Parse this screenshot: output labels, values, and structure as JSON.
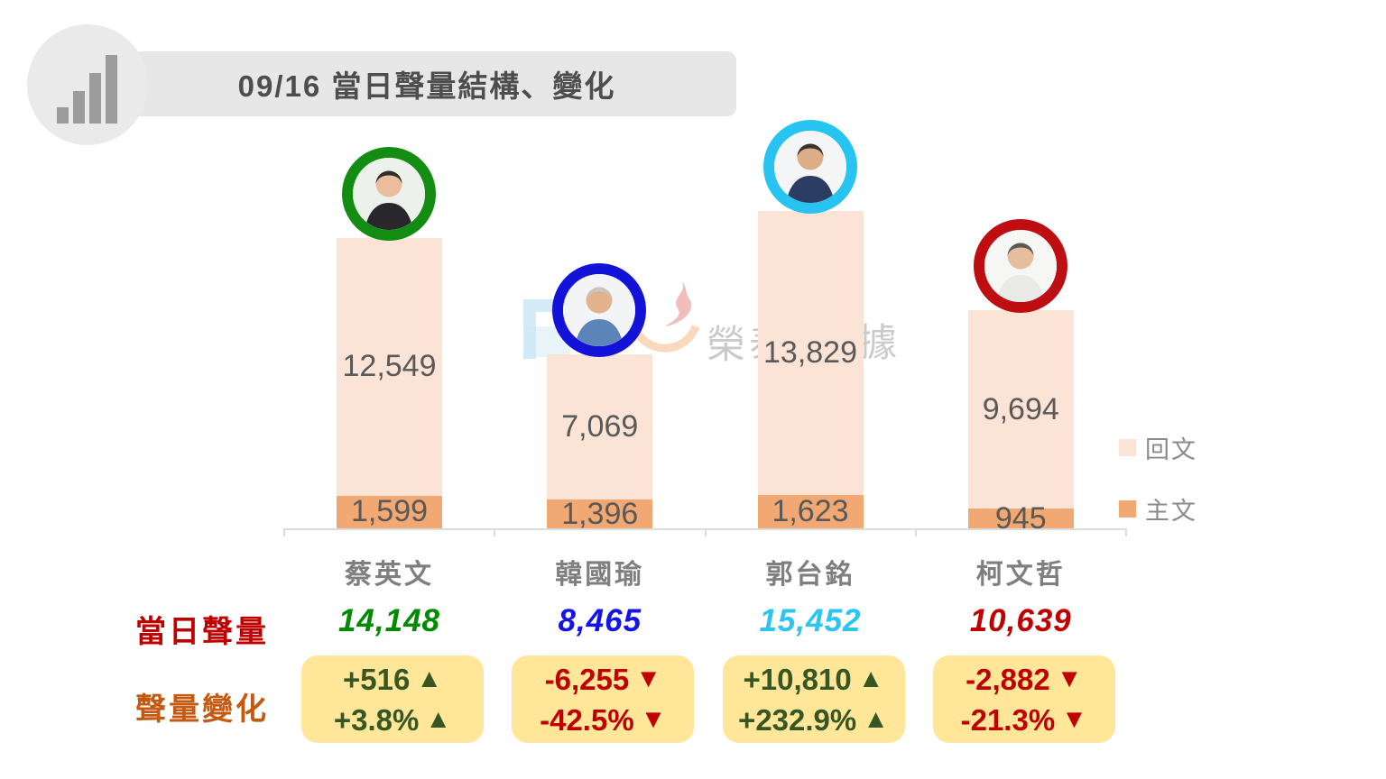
{
  "title": "09/16 當日聲量結構、變化",
  "watermark": {
    "text_left": "榮泰",
    "text_right": "據"
  },
  "legend": {
    "reply_label": "回文",
    "main_label": "主文",
    "reply_color": "#FBE4D5",
    "main_color": "#F2A873"
  },
  "row_labels": {
    "daily_volume": "當日聲量",
    "volume_change": "聲量變化"
  },
  "colors": {
    "daily_volume_label": "#C00000",
    "volume_change_label": "#C45911",
    "change_box_bg": "#FFE699",
    "positive_change": "#375623",
    "negative_change": "#C00000",
    "bar_value_text": "#595959",
    "candidate_name_text": "#7F7F7F",
    "axis": "#DCDCDC",
    "title_text": "#4D4D4D",
    "banner_bg": "#E7E7E7"
  },
  "chart_data": {
    "type": "bar",
    "stacked": true,
    "title": "09/16 當日聲量結構、變化",
    "categories": [
      "蔡英文",
      "韓國瑜",
      "郭台銘",
      "柯文哲"
    ],
    "series": [
      {
        "name": "回文",
        "values": [
          12549,
          7069,
          13829,
          9694
        ],
        "color": "#FBE4D5"
      },
      {
        "name": "主文",
        "values": [
          1599,
          1396,
          1623,
          945
        ],
        "color": "#F2A873"
      }
    ],
    "totals": [
      14148,
      8465,
      15452,
      10639
    ],
    "xlabel": "",
    "ylabel": "",
    "ylim": [
      0,
      16000
    ],
    "grid": false,
    "legend_position": "right",
    "annotations": {
      "daily_volume": [
        "14,148",
        "8,465",
        "15,452",
        "10,639"
      ],
      "volume_change_abs": [
        "+516",
        "-6,255",
        "+10,810",
        "-2,882"
      ],
      "volume_change_pct": [
        "+3.8%",
        "-42.5%",
        "+232.9%",
        "-21.3%"
      ]
    }
  },
  "candidates": [
    {
      "name": "蔡英文",
      "reply": "12,549",
      "main": "1,599",
      "total": "14,148",
      "reply_value": 12549,
      "main_value": 1599,
      "total_color": "#008A00",
      "ring_color": "#128D12",
      "change_abs": "+516",
      "change_pct": "+3.8%",
      "arrow": "▲",
      "trend": "up",
      "change_color": "#375623",
      "avatar": {
        "bg": "#EDF1EC",
        "hair": "#332E2B",
        "skin": "#ECBD9C",
        "shirt": "#2A272C"
      }
    },
    {
      "name": "韓國瑜",
      "reply": "7,069",
      "main": "1,396",
      "total": "8,465",
      "reply_value": 7069,
      "main_value": 1396,
      "total_color": "#1414E8",
      "ring_color": "#1212D9",
      "change_abs": "-6,255",
      "change_pct": "-42.5%",
      "arrow": "▼",
      "trend": "down",
      "change_color": "#C00000",
      "avatar": {
        "bg": "#F2F4F6",
        "hair": "#C9C5BD",
        "skin": "#E3B28C",
        "shirt": "#5D84B8"
      }
    },
    {
      "name": "郭台銘",
      "reply": "13,829",
      "main": "1,623",
      "total": "15,452",
      "reply_value": 13829,
      "main_value": 1623,
      "total_color": "#2CC4F0",
      "ring_color": "#27C4F2",
      "change_abs": "+10,810",
      "change_pct": "+232.9%",
      "arrow": "▲",
      "trend": "up",
      "change_color": "#375623",
      "avatar": {
        "bg": "#F3F5F7",
        "hair": "#3A332E",
        "skin": "#DCAE85",
        "shirt": "#2C3D63"
      }
    },
    {
      "name": "柯文哲",
      "reply": "9,694",
      "main": "945",
      "total": "10,639",
      "reply_value": 9694,
      "main_value": 945,
      "total_color": "#C00000",
      "ring_color": "#BE0E12",
      "change_abs": "-2,882",
      "change_pct": "-21.3%",
      "arrow": "▼",
      "trend": "down",
      "change_color": "#C00000",
      "avatar": {
        "bg": "#F6F6F4",
        "hair": "#5C5A56",
        "skin": "#E6BD9D",
        "shirt": "#E9E9E7"
      }
    }
  ]
}
